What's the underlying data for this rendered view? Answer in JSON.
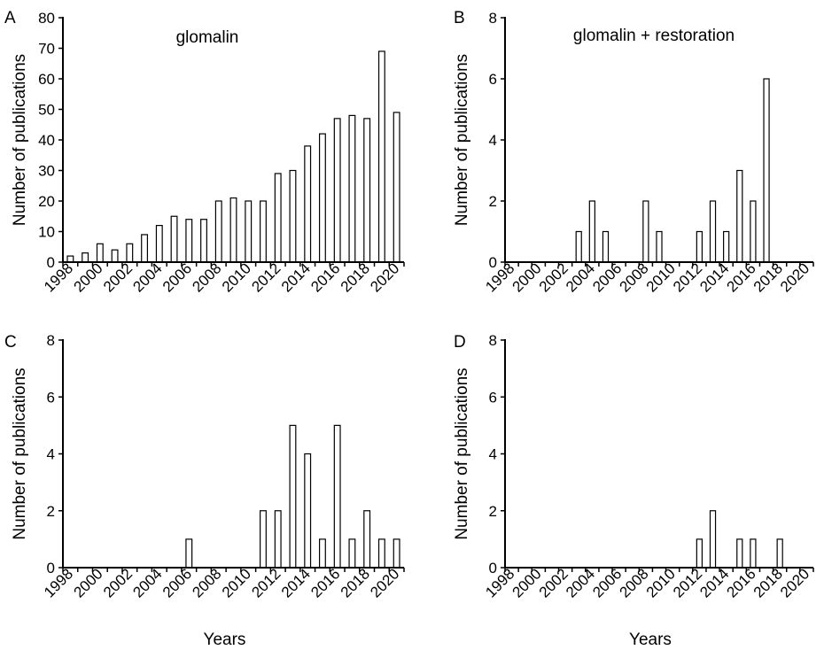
{
  "chart_data": [
    {
      "panel": "A",
      "type": "bar",
      "title": "glomalin",
      "xlabel": "",
      "ylabel": "Number of publications",
      "ylim": [
        0,
        80
      ],
      "yticks": [
        0,
        10,
        20,
        30,
        40,
        50,
        60,
        70,
        80
      ],
      "categories": [
        "1998",
        "1999",
        "2000",
        "2001",
        "2002",
        "2003",
        "2004",
        "2005",
        "2006",
        "2007",
        "2008",
        "2009",
        "2010",
        "2011",
        "2012",
        "2013",
        "2014",
        "2015",
        "2016",
        "2017",
        "2018",
        "2019",
        "2020"
      ],
      "xticklabels": [
        "1998",
        "2000",
        "2002",
        "2004",
        "2006",
        "2008",
        "2010",
        "2012",
        "2014",
        "2016",
        "2018",
        "2020"
      ],
      "values": [
        2,
        3,
        6,
        4,
        6,
        9,
        12,
        15,
        14,
        14,
        20,
        21,
        20,
        20,
        29,
        30,
        38,
        42,
        47,
        48,
        47,
        69,
        49
      ]
    },
    {
      "panel": "B",
      "type": "bar",
      "title": "glomalin + restoration",
      "xlabel": "",
      "ylabel": "Number of publications",
      "ylim": [
        0,
        8
      ],
      "yticks": [
        0,
        2,
        4,
        6,
        8
      ],
      "categories": [
        "1998",
        "1999",
        "2000",
        "2001",
        "2002",
        "2003",
        "2004",
        "2005",
        "2006",
        "2007",
        "2008",
        "2009",
        "2010",
        "2011",
        "2012",
        "2013",
        "2014",
        "2015",
        "2016",
        "2017",
        "2018",
        "2019",
        "2020"
      ],
      "xticklabels": [
        "1998",
        "2000",
        "2002",
        "2004",
        "2006",
        "2008",
        "2010",
        "2012",
        "2014",
        "2016",
        "2018",
        "2020"
      ],
      "values": [
        0,
        0,
        0,
        0,
        0,
        1,
        2,
        1,
        0,
        0,
        2,
        1,
        0,
        0,
        1,
        2,
        1,
        3,
        2,
        6,
        0,
        0,
        0
      ]
    },
    {
      "panel": "C",
      "type": "bar",
      "title": "",
      "xlabel": "Years",
      "ylabel": "Number of publications",
      "ylim": [
        0,
        8
      ],
      "yticks": [
        0,
        2,
        4,
        6,
        8
      ],
      "categories": [
        "1998",
        "1999",
        "2000",
        "2001",
        "2002",
        "2003",
        "2004",
        "2005",
        "2006",
        "2007",
        "2008",
        "2009",
        "2010",
        "2011",
        "2012",
        "2013",
        "2014",
        "2015",
        "2016",
        "2017",
        "2018",
        "2019",
        "2020"
      ],
      "xticklabels": [
        "1998",
        "2000",
        "2002",
        "2004",
        "2006",
        "2008",
        "2010",
        "2012",
        "2014",
        "2016",
        "2018",
        "2020"
      ],
      "values": [
        0,
        0,
        0,
        0,
        0,
        0,
        0,
        0,
        1,
        0,
        0,
        0,
        0,
        2,
        2,
        5,
        4,
        1,
        5,
        1,
        2,
        1,
        1
      ]
    },
    {
      "panel": "D",
      "type": "bar",
      "title": "",
      "xlabel": "Years",
      "ylabel": "Number of publications",
      "ylim": [
        0,
        8
      ],
      "yticks": [
        0,
        2,
        4,
        6,
        8
      ],
      "categories": [
        "1998",
        "1999",
        "2000",
        "2001",
        "2002",
        "2003",
        "2004",
        "2005",
        "2006",
        "2007",
        "2008",
        "2009",
        "2010",
        "2011",
        "2012",
        "2013",
        "2014",
        "2015",
        "2016",
        "2017",
        "2018",
        "2019",
        "2020"
      ],
      "xticklabels": [
        "1998",
        "2000",
        "2002",
        "2004",
        "2006",
        "2008",
        "2010",
        "2012",
        "2014",
        "2016",
        "2018",
        "2020"
      ],
      "values": [
        0,
        0,
        0,
        0,
        0,
        0,
        0,
        0,
        0,
        0,
        0,
        0,
        0,
        0,
        1,
        2,
        0,
        1,
        1,
        0,
        1,
        0,
        0
      ]
    }
  ]
}
